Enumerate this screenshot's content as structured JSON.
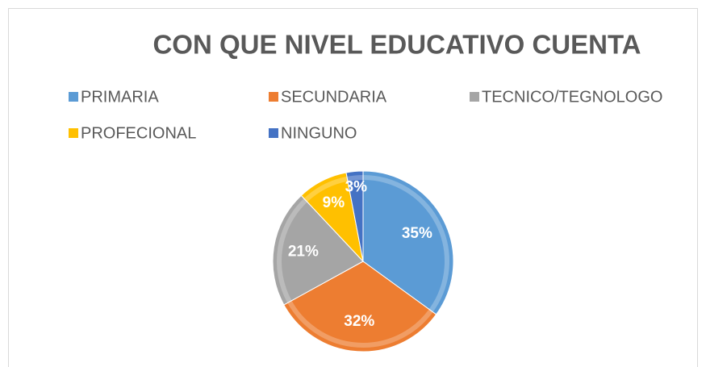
{
  "chart_data": {
    "type": "pie",
    "title": "CON QUE NIVEL EDUCATIVO CUENTA",
    "categories": [
      "PRIMARIA",
      "SECUNDARIA",
      "TECNICO/TEGNOLOGO",
      "PROFECIONAL",
      "NINGUNO"
    ],
    "values": [
      35,
      32,
      21,
      9,
      3
    ],
    "value_labels": [
      "35%",
      "32%",
      "21%",
      "9%",
      "3%"
    ],
    "colors": [
      "#5b9bd5",
      "#ed7d31",
      "#a5a5a5",
      "#ffc000",
      "#4472c4"
    ]
  }
}
